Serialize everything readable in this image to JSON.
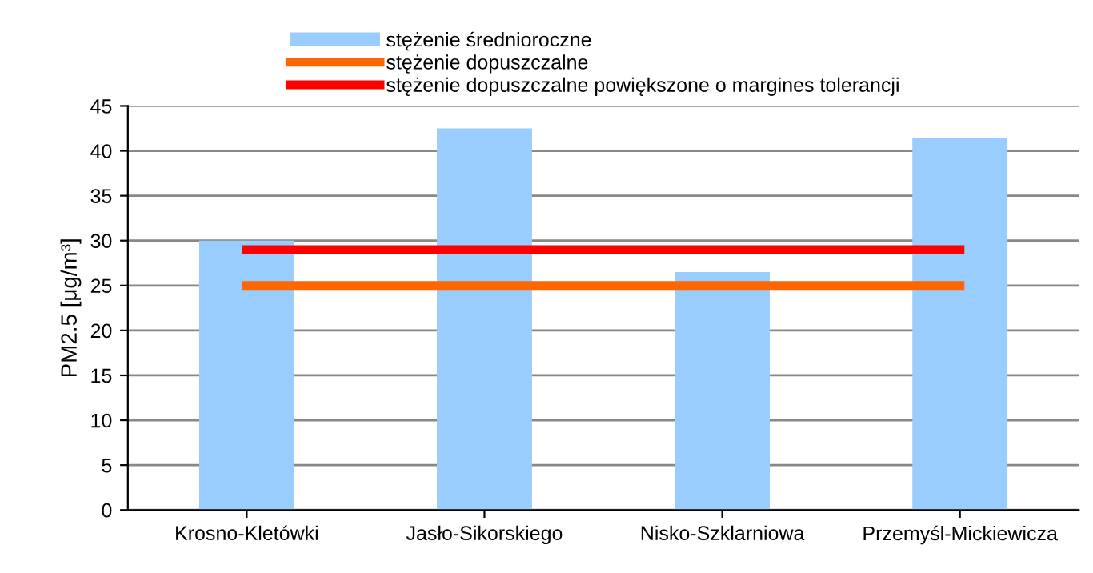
{
  "chart_data": {
    "type": "bar",
    "categories": [
      "Krosno-Kletówki",
      "Jasło-Sikorskiego",
      "Nisko-Szklarniowa",
      "Przemyśl-Mickiewicza"
    ],
    "series": [
      {
        "name": "stężenie średnioroczne",
        "color": "#99ccff",
        "values": [
          30,
          42.5,
          26.5,
          41.4
        ]
      },
      {
        "name": "stężenie dopuszczalne",
        "type": "line",
        "color": "#ff6600",
        "values": [
          25,
          25,
          25,
          25
        ]
      },
      {
        "name": "stężenie dopuszczalne powiększone o margines tolerancji",
        "type": "line",
        "color": "#ff0000",
        "values": [
          29,
          29,
          29,
          29
        ]
      }
    ],
    "ylabel": "PM2.5 [μg/m³]",
    "ylim": [
      0,
      45
    ],
    "yticks": [
      0,
      5,
      10,
      15,
      20,
      25,
      30,
      35,
      40,
      45
    ],
    "grid": "y",
    "legend": "top",
    "marker": "none"
  }
}
